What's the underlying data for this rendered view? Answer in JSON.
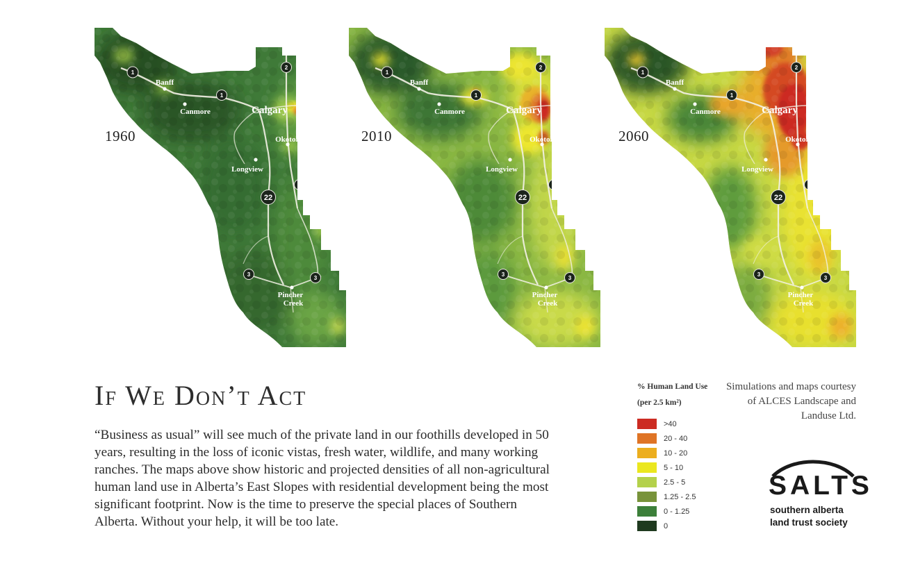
{
  "maps": [
    {
      "year": "1960",
      "level": 0
    },
    {
      "year": "2010",
      "level": 1
    },
    {
      "year": "2060",
      "level": 2
    }
  ],
  "places": {
    "banff": "Banff",
    "canmore": "Canmore",
    "calgary": "Calgary",
    "okotoks": "Okotoks",
    "longview": "Longview",
    "pincher_1": "Pincher",
    "pincher_2": "Creek"
  },
  "highways": {
    "h1": "1",
    "h2": "2",
    "h3": "3",
    "h22": "22"
  },
  "headline": "If We Don’t Act",
  "body": "“Business as usual” will see much of the private land in our foothills developed in 50 years, resulting in the loss of iconic vistas, fresh water, wildlife, and many working ranches. The maps above show historic and projected densities of all non-agricultural human land use in Alberta’s East Slopes with residential development being the most significant footprint. Now is the time to preserve the special places of Southern Alberta. Without your help, it will be too late.",
  "legend": {
    "title": "% Human Land Use",
    "subtitle": "(per 2.5 km²)",
    "items": [
      {
        "label": ">40",
        "color": "#cc2b22"
      },
      {
        "label": "20 - 40",
        "color": "#df7425"
      },
      {
        "label": "10 - 20",
        "color": "#ecae1e"
      },
      {
        "label": "5 - 10",
        "color": "#ebe71f"
      },
      {
        "label": "2.5 - 5",
        "color": "#b4d14b"
      },
      {
        "label": "1.25 - 2.5",
        "color": "#78933a"
      },
      {
        "label": "0 - 1.25",
        "color": "#3c7f3a"
      },
      {
        "label": "0",
        "color": "#1f3a1f"
      }
    ]
  },
  "credit": "Simulations and maps courtesy of ALCES Landscape and Landuse Ltd.",
  "logo": {
    "word": "SALTS",
    "tagline_1": "southern alberta",
    "tagline_2": "land trust society"
  }
}
